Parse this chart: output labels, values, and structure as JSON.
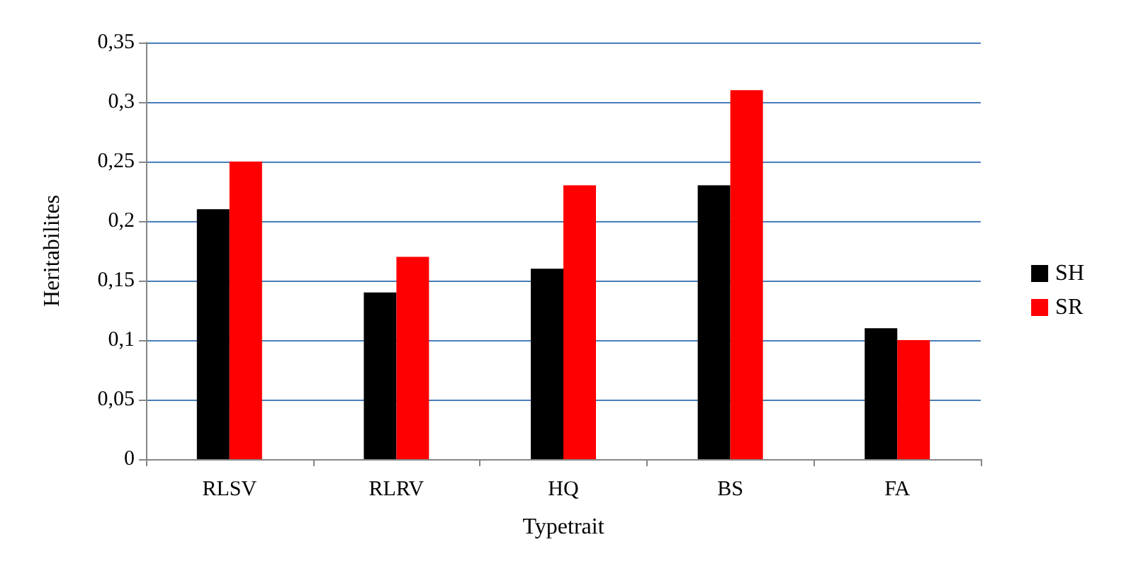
{
  "chart_data": {
    "type": "bar",
    "xlabel": "Typetrait",
    "ylabel": "Heritabilites",
    "categories": [
      "RLSV",
      "RLRV",
      "HQ",
      "BS",
      "FA"
    ],
    "series": [
      {
        "name": "SH",
        "color": "#000000",
        "values": [
          0.21,
          0.14,
          0.16,
          0.23,
          0.11
        ]
      },
      {
        "name": "SR",
        "color": "#ff0000",
        "values": [
          0.25,
          0.17,
          0.23,
          0.31,
          0.1
        ]
      }
    ],
    "ylim": [
      0,
      0.35
    ],
    "yticks": [
      0,
      {
        "value": 0.05,
        "label": "0,05"
      },
      {
        "value": 0.1,
        "label": "0,1"
      },
      {
        "value": 0.15,
        "label": "0,15"
      },
      {
        "value": 0.2,
        "label": "0,2"
      },
      {
        "value": 0.25,
        "label": "0,25"
      },
      {
        "value": 0.3,
        "label": "0,3"
      },
      {
        "value": 0.35,
        "label": "0,35"
      }
    ],
    "grid": "y",
    "legend": "right"
  }
}
